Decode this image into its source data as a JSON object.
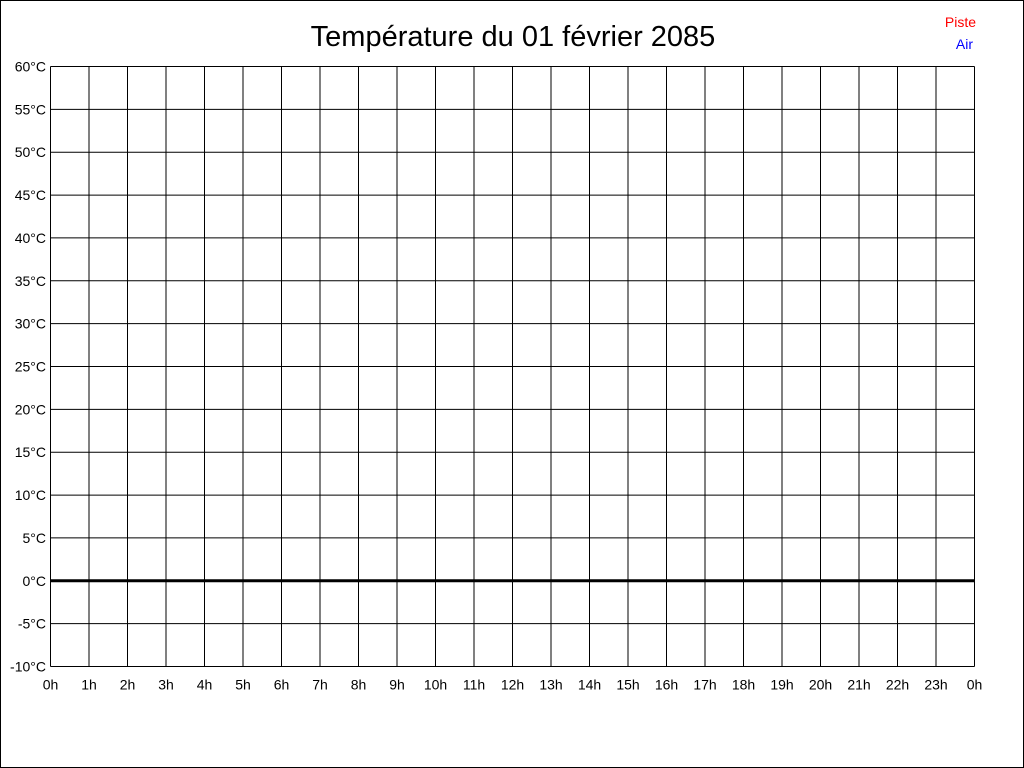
{
  "chart_data": {
    "type": "line",
    "title": "Température du 01 février 2085",
    "xlabel": "",
    "ylabel": "",
    "x_ticks": [
      "0h",
      "1h",
      "2h",
      "3h",
      "4h",
      "5h",
      "6h",
      "7h",
      "8h",
      "9h",
      "10h",
      "11h",
      "12h",
      "13h",
      "14h",
      "15h",
      "16h",
      "17h",
      "18h",
      "19h",
      "20h",
      "21h",
      "22h",
      "23h",
      "0h"
    ],
    "y_ticks": [
      "60°C",
      "55°C",
      "50°C",
      "45°C",
      "40°C",
      "35°C",
      "30°C",
      "25°C",
      "20°C",
      "15°C",
      "10°C",
      "5°C",
      "0°C",
      "-5°C",
      "-10°C"
    ],
    "ylim": [
      -10,
      60
    ],
    "y_step": 5,
    "grid": true,
    "legend_position": "top-right",
    "series": [
      {
        "name": "Piste",
        "color": "#ff0000",
        "values": []
      },
      {
        "name": "Air",
        "color": "#0000ff",
        "values": []
      }
    ]
  }
}
